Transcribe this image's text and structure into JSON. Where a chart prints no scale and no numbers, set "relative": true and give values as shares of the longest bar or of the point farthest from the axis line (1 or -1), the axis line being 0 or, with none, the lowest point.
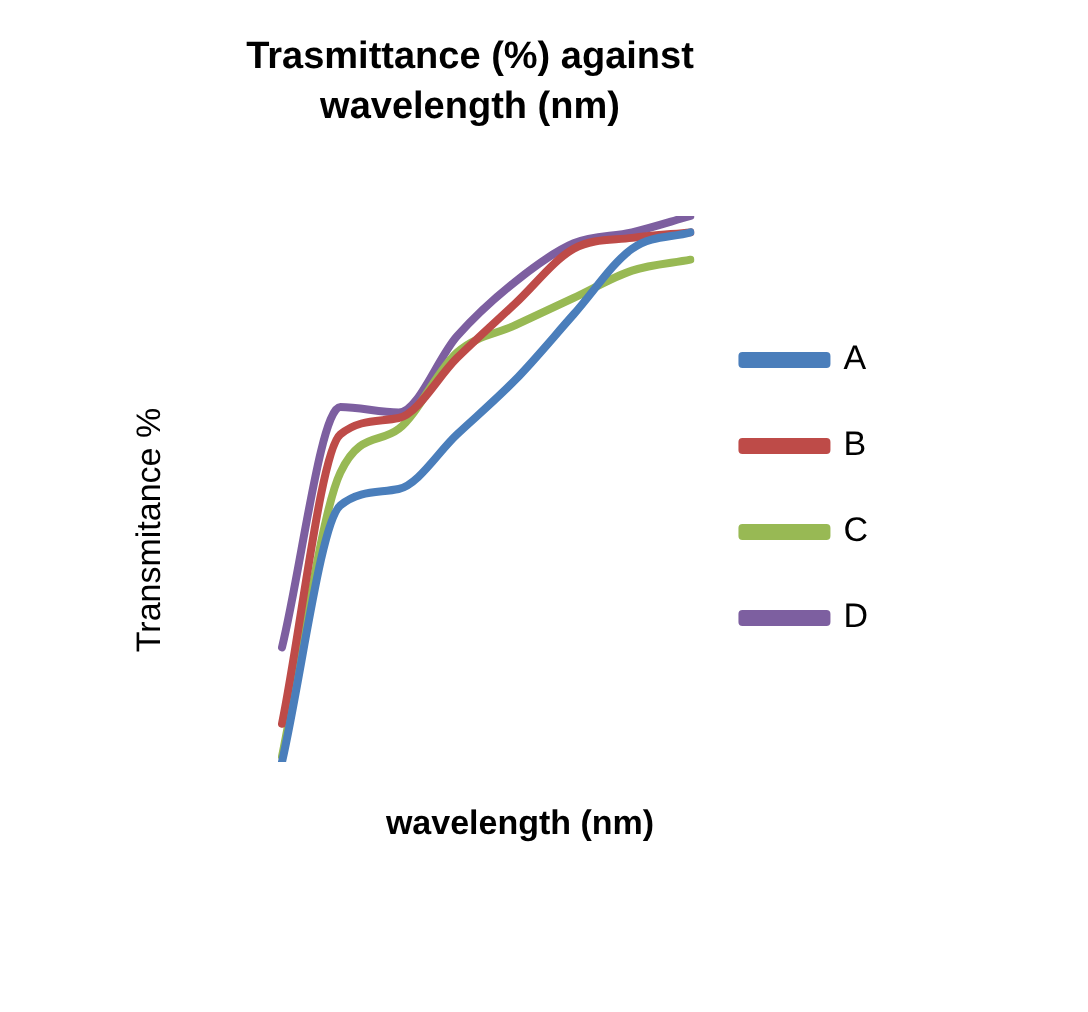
{
  "chart_data": {
    "type": "line",
    "title": "Trasmittance (%) against wavelength (nm)",
    "xlabel": "wavelength (nm)",
    "ylabel": "Transmitance %",
    "relative": true,
    "legend": "right",
    "marker": "none",
    "categories": [
      null,
      null,
      null,
      null,
      null,
      null,
      null,
      null
    ],
    "series": [
      {
        "name": "A",
        "color": "#4a7ebb",
        "values": [
          0,
          0.47,
          0.5,
          0.6,
          0.7,
          0.82,
          0.94,
          0.97
        ]
      },
      {
        "name": "B",
        "color": "#be4b48",
        "values": [
          0.07,
          0.6,
          0.63,
          0.74,
          0.84,
          0.94,
          0.96,
          0.97
        ]
      },
      {
        "name": "C",
        "color": "#98b954",
        "values": [
          0.01,
          0.53,
          0.61,
          0.75,
          0.8,
          0.85,
          0.9,
          0.92
        ]
      },
      {
        "name": "D",
        "color": "#7d5fa0",
        "values": [
          0.21,
          0.65,
          0.64,
          0.78,
          0.88,
          0.95,
          0.97,
          1
        ]
      }
    ]
  }
}
